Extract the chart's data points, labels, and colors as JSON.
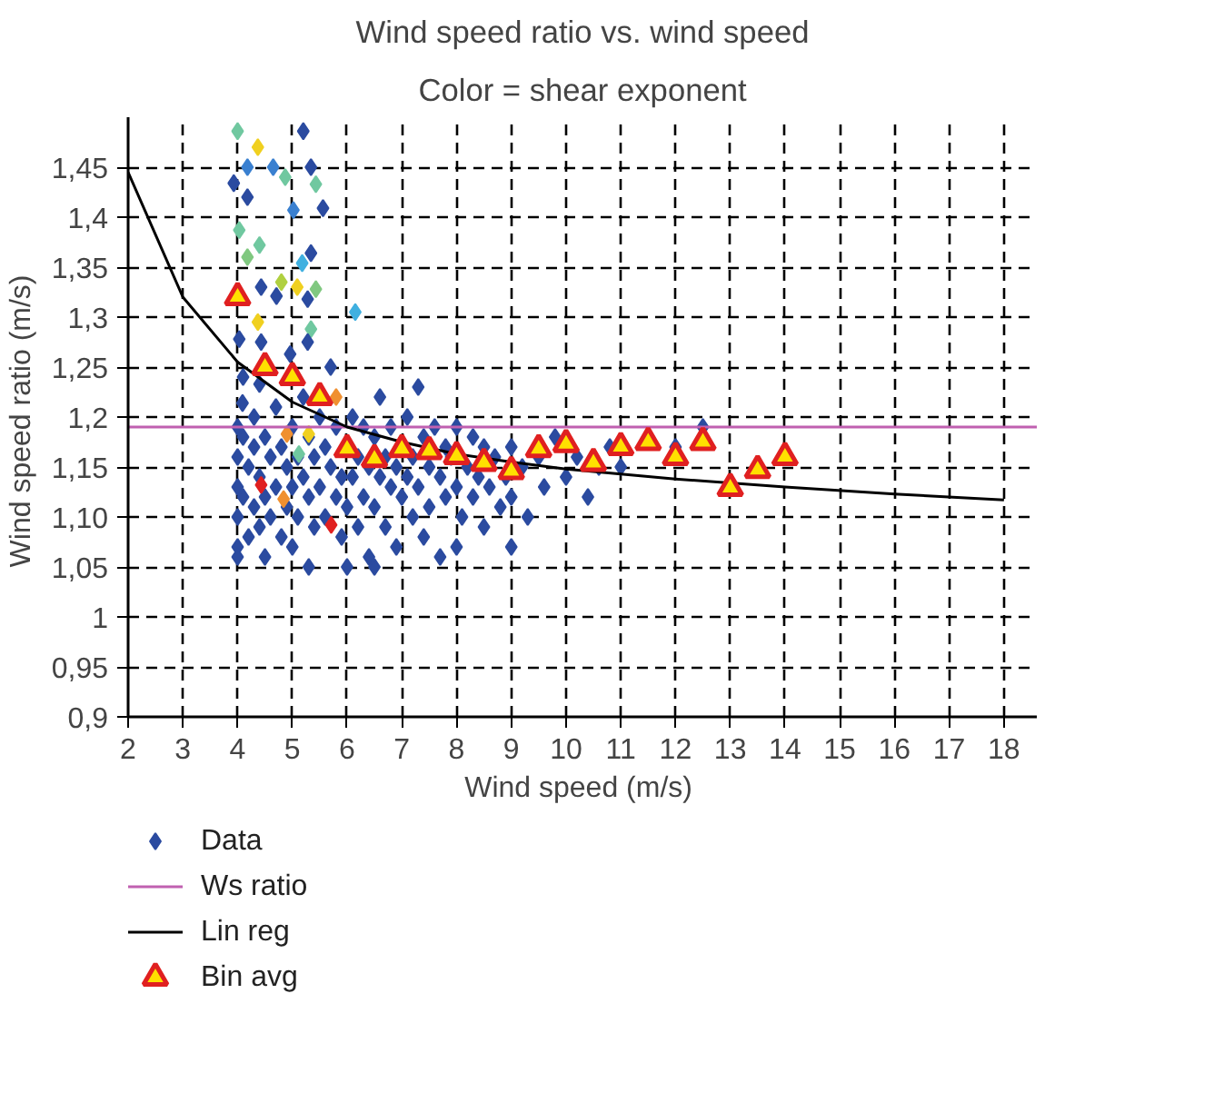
{
  "chart_data": {
    "type": "scatter",
    "title": "Wind speed ratio vs. wind speed",
    "subtitle": "Color = shear exponent",
    "xlabel": "Wind speed  (m/s)",
    "ylabel": "Wind speed ratio  (m/s)",
    "xlim": [
      2,
      18.6
    ],
    "ylim": [
      0.9,
      1.5
    ],
    "xticks": [
      2,
      3,
      4,
      5,
      6,
      7,
      8,
      9,
      10,
      11,
      12,
      13,
      14,
      15,
      16,
      17,
      18
    ],
    "yticks": [
      {
        "value": 0.9,
        "label": "0,9"
      },
      {
        "value": 0.95,
        "label": "0,95"
      },
      {
        "value": 1,
        "label": "1"
      },
      {
        "value": 1.05,
        "label": "1,05"
      },
      {
        "value": 1.1,
        "label": "1,10"
      },
      {
        "value": 1.15,
        "label": "1,15"
      },
      {
        "value": 1.2,
        "label": "1,2"
      },
      {
        "value": 1.25,
        "label": "1,25"
      },
      {
        "value": 1.3,
        "label": "1,3"
      },
      {
        "value": 1.35,
        "label": "1,35"
      },
      {
        "value": 1.4,
        "label": "1,4"
      },
      {
        "value": 1.45,
        "label": "1,45"
      }
    ],
    "grid": true,
    "legend": "bottom",
    "series": [
      {
        "name": "Data",
        "marker": "diamond",
        "x": [
          4.0,
          4.0,
          4.0,
          4.0,
          4.0,
          4.0,
          4.1,
          4.1,
          4.1,
          4.2,
          4.2,
          4.3,
          4.3,
          4.3,
          4.4,
          4.4,
          4.5,
          4.5,
          4.5,
          4.6,
          4.6,
          4.7,
          4.7,
          4.8,
          4.8,
          4.9,
          4.9,
          5.0,
          5.0,
          5.0,
          5.1,
          5.1,
          5.2,
          5.2,
          5.3,
          5.3,
          5.3,
          5.4,
          5.4,
          5.5,
          5.5,
          5.6,
          5.6,
          5.7,
          5.7,
          5.8,
          5.8,
          5.9,
          5.9,
          6.0,
          6.0,
          6.1,
          6.1,
          6.2,
          6.2,
          6.3,
          6.3,
          6.4,
          6.4,
          6.5,
          6.5,
          6.6,
          6.6,
          6.7,
          6.7,
          6.8,
          6.8,
          6.9,
          6.9,
          7.0,
          7.1,
          7.1,
          7.2,
          7.2,
          7.3,
          7.3,
          7.4,
          7.4,
          7.5,
          7.5,
          7.6,
          7.7,
          7.7,
          7.8,
          7.8,
          7.9,
          8.0,
          8.0,
          8.1,
          8.2,
          8.3,
          8.3,
          8.4,
          8.5,
          8.5,
          8.6,
          8.7,
          8.8,
          8.9,
          9.0,
          9.0,
          9.2,
          9.3,
          9.5,
          9.6,
          9.8,
          10.0,
          10.2,
          10.4,
          10.6,
          10.8,
          11.0,
          12.0,
          12.5,
          6.5,
          8.0,
          9.0,
          4.0,
          5.2,
          4.37,
          4.18,
          4.65,
          5.34,
          3.93,
          4.87,
          5.43,
          4.18,
          5.56,
          5.02,
          4.03,
          4.4,
          4.18,
          5.34,
          5.18,
          4.43,
          4.8,
          5.09,
          5.43,
          4.71,
          5.28,
          6.15,
          4.37,
          5.34,
          4.03,
          4.43,
          5.28,
          4.96,
          4.4,
          5.8,
          4.09,
          4.9,
          5.3,
          4.43,
          4.84,
          5.71,
          5.12
        ],
        "values": [
          1.19,
          1.16,
          1.13,
          1.1,
          1.07,
          1.06,
          1.18,
          1.12,
          1.24,
          1.15,
          1.08,
          1.17,
          1.11,
          1.2,
          1.14,
          1.09,
          1.18,
          1.12,
          1.06,
          1.16,
          1.1,
          1.21,
          1.13,
          1.17,
          1.08,
          1.15,
          1.11,
          1.19,
          1.13,
          1.07,
          1.16,
          1.1,
          1.22,
          1.14,
          1.18,
          1.12,
          1.05,
          1.16,
          1.09,
          1.2,
          1.13,
          1.17,
          1.1,
          1.15,
          1.25,
          1.12,
          1.19,
          1.14,
          1.08,
          1.11,
          1.05,
          1.2,
          1.14,
          1.09,
          1.16,
          1.12,
          1.19,
          1.15,
          1.06,
          1.18,
          1.11,
          1.14,
          1.22,
          1.16,
          1.09,
          1.13,
          1.19,
          1.15,
          1.07,
          1.12,
          1.2,
          1.14,
          1.1,
          1.16,
          1.13,
          1.23,
          1.18,
          1.08,
          1.15,
          1.11,
          1.19,
          1.14,
          1.06,
          1.17,
          1.12,
          1.16,
          1.13,
          1.19,
          1.1,
          1.15,
          1.18,
          1.12,
          1.14,
          1.17,
          1.09,
          1.13,
          1.16,
          1.11,
          1.14,
          1.17,
          1.12,
          1.15,
          1.1,
          1.16,
          1.13,
          1.18,
          1.14,
          1.16,
          1.12,
          1.15,
          1.17,
          1.15,
          1.17,
          1.19,
          1.05,
          1.07,
          1.07,
          1.486,
          1.486,
          1.47,
          1.45,
          1.45,
          1.45,
          1.434,
          1.44,
          1.433,
          1.42,
          1.409,
          1.407,
          1.387,
          1.372,
          1.36,
          1.364,
          1.354,
          1.33,
          1.335,
          1.33,
          1.328,
          1.321,
          1.318,
          1.305,
          1.295,
          1.288,
          1.278,
          1.275,
          1.275,
          1.263,
          1.233,
          1.22,
          1.214,
          1.183,
          1.183,
          1.132,
          1.118,
          1.092,
          1.163
        ],
        "colors": [
          "#2b4ba0",
          "#2b4ba0",
          "#2b4ba0",
          "#2b4ba0",
          "#2b4ba0",
          "#2b4ba0",
          "#2b4ba0",
          "#2b4ba0",
          "#2b4ba0",
          "#2b4ba0",
          "#2b4ba0",
          "#2b4ba0",
          "#2b4ba0",
          "#2b4ba0",
          "#2b4ba0",
          "#2b4ba0",
          "#2b4ba0",
          "#2b4ba0",
          "#2b4ba0",
          "#2b4ba0",
          "#2b4ba0",
          "#2b4ba0",
          "#2b4ba0",
          "#2b4ba0",
          "#2b4ba0",
          "#2b4ba0",
          "#2b4ba0",
          "#2b4ba0",
          "#2b4ba0",
          "#2b4ba0",
          "#2b4ba0",
          "#2b4ba0",
          "#2b4ba0",
          "#2b4ba0",
          "#2b4ba0",
          "#2b4ba0",
          "#2b4ba0",
          "#2b4ba0",
          "#2b4ba0",
          "#2b4ba0",
          "#2b4ba0",
          "#2b4ba0",
          "#2b4ba0",
          "#2b4ba0",
          "#2b4ba0",
          "#2b4ba0",
          "#2b4ba0",
          "#2b4ba0",
          "#2b4ba0",
          "#2b4ba0",
          "#2b4ba0",
          "#2b4ba0",
          "#2b4ba0",
          "#2b4ba0",
          "#2b4ba0",
          "#2b4ba0",
          "#2b4ba0",
          "#2b4ba0",
          "#2b4ba0",
          "#2b4ba0",
          "#2b4ba0",
          "#2b4ba0",
          "#2b4ba0",
          "#2b4ba0",
          "#2b4ba0",
          "#2b4ba0",
          "#2b4ba0",
          "#2b4ba0",
          "#2b4ba0",
          "#2b4ba0",
          "#2b4ba0",
          "#2b4ba0",
          "#2b4ba0",
          "#2b4ba0",
          "#2b4ba0",
          "#2b4ba0",
          "#2b4ba0",
          "#2b4ba0",
          "#2b4ba0",
          "#2b4ba0",
          "#2b4ba0",
          "#2b4ba0",
          "#2b4ba0",
          "#2b4ba0",
          "#2b4ba0",
          "#2b4ba0",
          "#2b4ba0",
          "#2b4ba0",
          "#2b4ba0",
          "#2b4ba0",
          "#2b4ba0",
          "#2b4ba0",
          "#2b4ba0",
          "#2b4ba0",
          "#2b4ba0",
          "#2b4ba0",
          "#2b4ba0",
          "#2b4ba0",
          "#2b4ba0",
          "#2b4ba0",
          "#2b4ba0",
          "#2b4ba0",
          "#2b4ba0",
          "#2b4ba0",
          "#2b4ba0",
          "#2b4ba0",
          "#2b4ba0",
          "#2b4ba0",
          "#2b4ba0",
          "#2b4ba0",
          "#2b4ba0",
          "#2b4ba0",
          "#2b4ba0",
          "#2b4ba0",
          "#2b4ba0",
          "#2b4ba0",
          "#2b4ba0",
          "#70c8a0",
          "#2b4ba0",
          "#f0d020",
          "#3a80d0",
          "#3a80d0",
          "#2b4ba0",
          "#2b4ba0",
          "#70c8a0",
          "#70c8a0",
          "#2b4ba0",
          "#2b4ba0",
          "#3a80d0",
          "#70c8a0",
          "#70c8a0",
          "#80c880",
          "#2b4ba0",
          "#40b0e0",
          "#2b4ba0",
          "#b0d040",
          "#f0d020",
          "#80c880",
          "#2b4ba0",
          "#2b4ba0",
          "#40b0e0",
          "#f0d020",
          "#70c8a0",
          "#2b4ba0",
          "#2b4ba0",
          "#2b4ba0",
          "#2b4ba0",
          "#2b4ba0",
          "#f09030",
          "#2b4ba0",
          "#f09030",
          "#f0d020",
          "#e02020",
          "#f09030",
          "#e02020",
          "#70c8a0"
        ]
      },
      {
        "name": "Ws ratio",
        "type": "line",
        "color": "#c060b0",
        "x": [
          2,
          18.6
        ],
        "values": [
          1.19,
          1.19
        ]
      },
      {
        "name": "Lin reg",
        "type": "line",
        "color": "#000000",
        "x": [
          2,
          3,
          4,
          5,
          6,
          7,
          8,
          9,
          10,
          12,
          14,
          16,
          18
        ],
        "values": [
          1.445,
          1.32,
          1.255,
          1.215,
          1.19,
          1.175,
          1.163,
          1.155,
          1.148,
          1.138,
          1.13,
          1.123,
          1.117
        ]
      },
      {
        "name": "Bin avg",
        "marker": "triangle",
        "color": "#e02020",
        "x": [
          4,
          4.5,
          5,
          5.5,
          6,
          6.5,
          7,
          7.5,
          8,
          8.5,
          9,
          9.5,
          10,
          10.5,
          11,
          11.5,
          12,
          12.5,
          13,
          13.5,
          14
        ],
        "values": [
          1.32,
          1.25,
          1.24,
          1.22,
          1.168,
          1.158,
          1.168,
          1.166,
          1.161,
          1.154,
          1.146,
          1.168,
          1.173,
          1.154,
          1.17,
          1.175,
          1.16,
          1.175,
          1.129,
          1.147,
          1.16
        ]
      }
    ]
  }
}
